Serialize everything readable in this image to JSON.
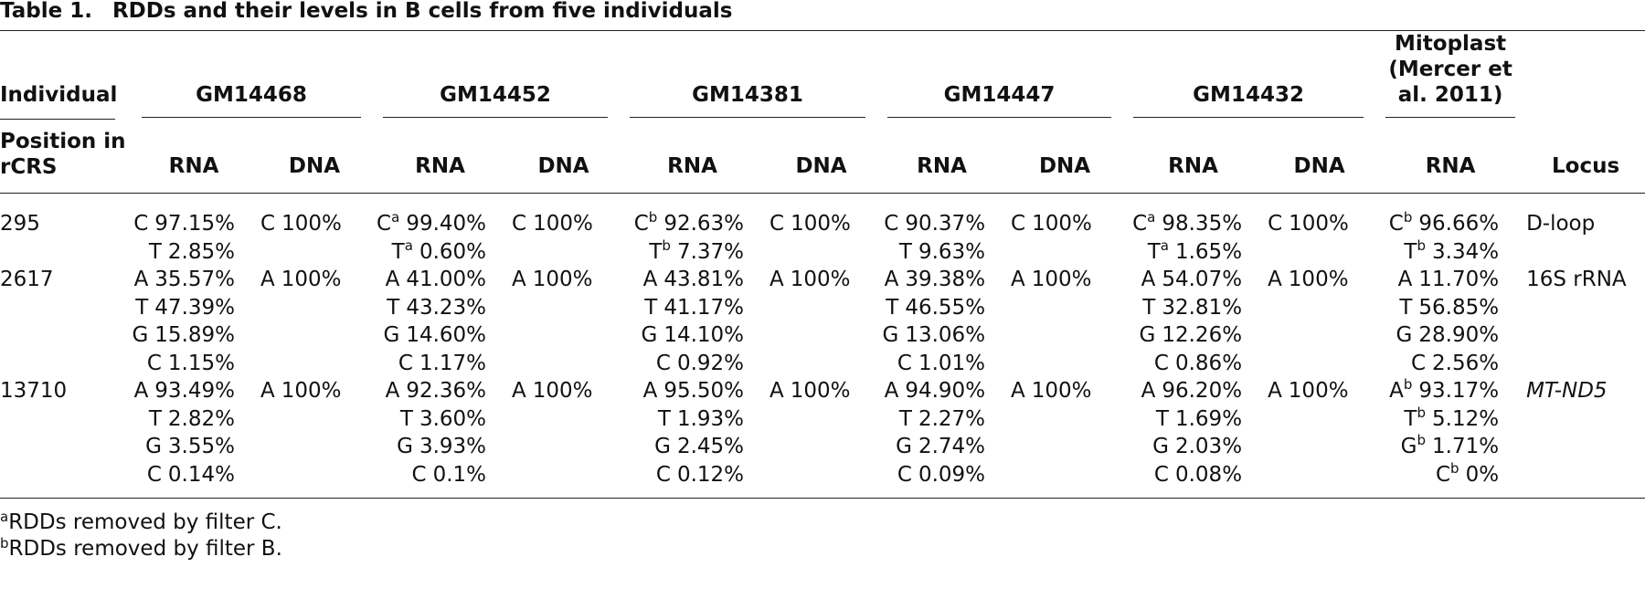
{
  "title": {
    "label": "Table 1.",
    "text": "RDDs and their levels in B cells from five individuals"
  },
  "header": {
    "individual": "Individual",
    "position": "Position in rCRS",
    "locus": "Locus",
    "groups": [
      {
        "name": "GM14468",
        "cols": [
          "RNA",
          "DNA"
        ]
      },
      {
        "name": "GM14452",
        "cols": [
          "RNA",
          "DNA"
        ]
      },
      {
        "name": "GM14381",
        "cols": [
          "RNA",
          "DNA"
        ]
      },
      {
        "name": "GM14447",
        "cols": [
          "RNA",
          "DNA"
        ]
      },
      {
        "name": "GM14432",
        "cols": [
          "RNA",
          "DNA"
        ]
      },
      {
        "name": "Mitoplast (Mercer et al. 2011)",
        "cols": [
          "RNA"
        ]
      }
    ]
  },
  "rows": [
    {
      "position": "295",
      "locus": "D-loop",
      "locus_italic": false,
      "cells": [
        [
          {
            "base": "C",
            "value": "97.15%"
          },
          {
            "base": "T",
            "value": "2.85%"
          }
        ],
        [
          {
            "base": "C",
            "value": "100%"
          }
        ],
        [
          {
            "base": "C",
            "sup": "a",
            "value": "99.40%"
          },
          {
            "base": "T",
            "sup": "a",
            "value": "0.60%"
          }
        ],
        [
          {
            "base": "C",
            "value": "100%"
          }
        ],
        [
          {
            "base": "C",
            "sup": "b",
            "value": "92.63%"
          },
          {
            "base": "T",
            "sup": "b",
            "value": "7.37%"
          }
        ],
        [
          {
            "base": "C",
            "value": "100%"
          }
        ],
        [
          {
            "base": "C",
            "value": "90.37%"
          },
          {
            "base": "T",
            "value": "9.63%"
          }
        ],
        [
          {
            "base": "C",
            "value": "100%"
          }
        ],
        [
          {
            "base": "C",
            "sup": "a",
            "value": "98.35%"
          },
          {
            "base": "T",
            "sup": "a",
            "value": "1.65%"
          }
        ],
        [
          {
            "base": "C",
            "value": "100%"
          }
        ],
        [
          {
            "base": "C",
            "sup": "b",
            "value": "96.66%"
          },
          {
            "base": "T",
            "sup": "b",
            "value": "3.34%"
          }
        ]
      ]
    },
    {
      "position": "2617",
      "locus": "16S rRNA",
      "locus_italic": false,
      "cells": [
        [
          {
            "base": "A",
            "value": "35.57%"
          },
          {
            "base": "T",
            "value": "47.39%"
          },
          {
            "base": "G",
            "value": "15.89%"
          },
          {
            "base": "C",
            "value": "1.15%"
          }
        ],
        [
          {
            "base": "A",
            "value": "100%"
          }
        ],
        [
          {
            "base": "A",
            "value": "41.00%"
          },
          {
            "base": "T",
            "value": "43.23%"
          },
          {
            "base": "G",
            "value": "14.60%"
          },
          {
            "base": "C",
            "value": "1.17%"
          }
        ],
        [
          {
            "base": "A",
            "value": "100%"
          }
        ],
        [
          {
            "base": "A",
            "value": "43.81%"
          },
          {
            "base": "T",
            "value": "41.17%"
          },
          {
            "base": "G",
            "value": "14.10%"
          },
          {
            "base": "C",
            "value": "0.92%"
          }
        ],
        [
          {
            "base": "A",
            "value": "100%"
          }
        ],
        [
          {
            "base": "A",
            "value": "39.38%"
          },
          {
            "base": "T",
            "value": "46.55%"
          },
          {
            "base": "G",
            "value": "13.06%"
          },
          {
            "base": "C",
            "value": "1.01%"
          }
        ],
        [
          {
            "base": "A",
            "value": "100%"
          }
        ],
        [
          {
            "base": "A",
            "value": "54.07%"
          },
          {
            "base": "T",
            "value": "32.81%"
          },
          {
            "base": "G",
            "value": "12.26%"
          },
          {
            "base": "C",
            "value": "0.86%"
          }
        ],
        [
          {
            "base": "A",
            "value": "100%"
          }
        ],
        [
          {
            "base": "A",
            "value": "11.70%"
          },
          {
            "base": "T",
            "value": "56.85%"
          },
          {
            "base": "G",
            "value": "28.90%"
          },
          {
            "base": "C",
            "value": "2.56%"
          }
        ]
      ]
    },
    {
      "position": "13710",
      "locus": "MT-ND5",
      "locus_italic": true,
      "cells": [
        [
          {
            "base": "A",
            "value": "93.49%"
          },
          {
            "base": "T",
            "value": "2.82%"
          },
          {
            "base": "G",
            "value": "3.55%"
          },
          {
            "base": "C",
            "value": "0.14%"
          }
        ],
        [
          {
            "base": "A",
            "value": "100%"
          }
        ],
        [
          {
            "base": "A",
            "value": "92.36%"
          },
          {
            "base": "T",
            "value": "3.60%"
          },
          {
            "base": "G",
            "value": "3.93%"
          },
          {
            "base": "C",
            "value": "0.1%"
          }
        ],
        [
          {
            "base": "A",
            "value": "100%"
          }
        ],
        [
          {
            "base": "A",
            "value": "95.50%"
          },
          {
            "base": "T",
            "value": "1.93%"
          },
          {
            "base": "G",
            "value": "2.45%"
          },
          {
            "base": "C",
            "value": "0.12%"
          }
        ],
        [
          {
            "base": "A",
            "value": "100%"
          }
        ],
        [
          {
            "base": "A",
            "value": "94.90%"
          },
          {
            "base": "T",
            "value": "2.27%"
          },
          {
            "base": "G",
            "value": "2.74%"
          },
          {
            "base": "C",
            "value": "0.09%"
          }
        ],
        [
          {
            "base": "A",
            "value": "100%"
          }
        ],
        [
          {
            "base": "A",
            "value": "96.20%"
          },
          {
            "base": "T",
            "value": "1.69%"
          },
          {
            "base": "G",
            "value": "2.03%"
          },
          {
            "base": "C",
            "value": "0.08%"
          }
        ],
        [
          {
            "base": "A",
            "value": "100%"
          }
        ],
        [
          {
            "base": "A",
            "sup": "b",
            "value": "93.17%"
          },
          {
            "base": "T",
            "sup": "b",
            "value": "5.12%"
          },
          {
            "base": "G",
            "sup": "b",
            "value": "1.71%"
          },
          {
            "base": "C",
            "sup": "b",
            "value": "0%"
          }
        ]
      ]
    }
  ],
  "footnotes": [
    {
      "mark": "a",
      "text": "RDDs removed by filter C."
    },
    {
      "mark": "b",
      "text": "RDDs removed by filter B."
    }
  ]
}
